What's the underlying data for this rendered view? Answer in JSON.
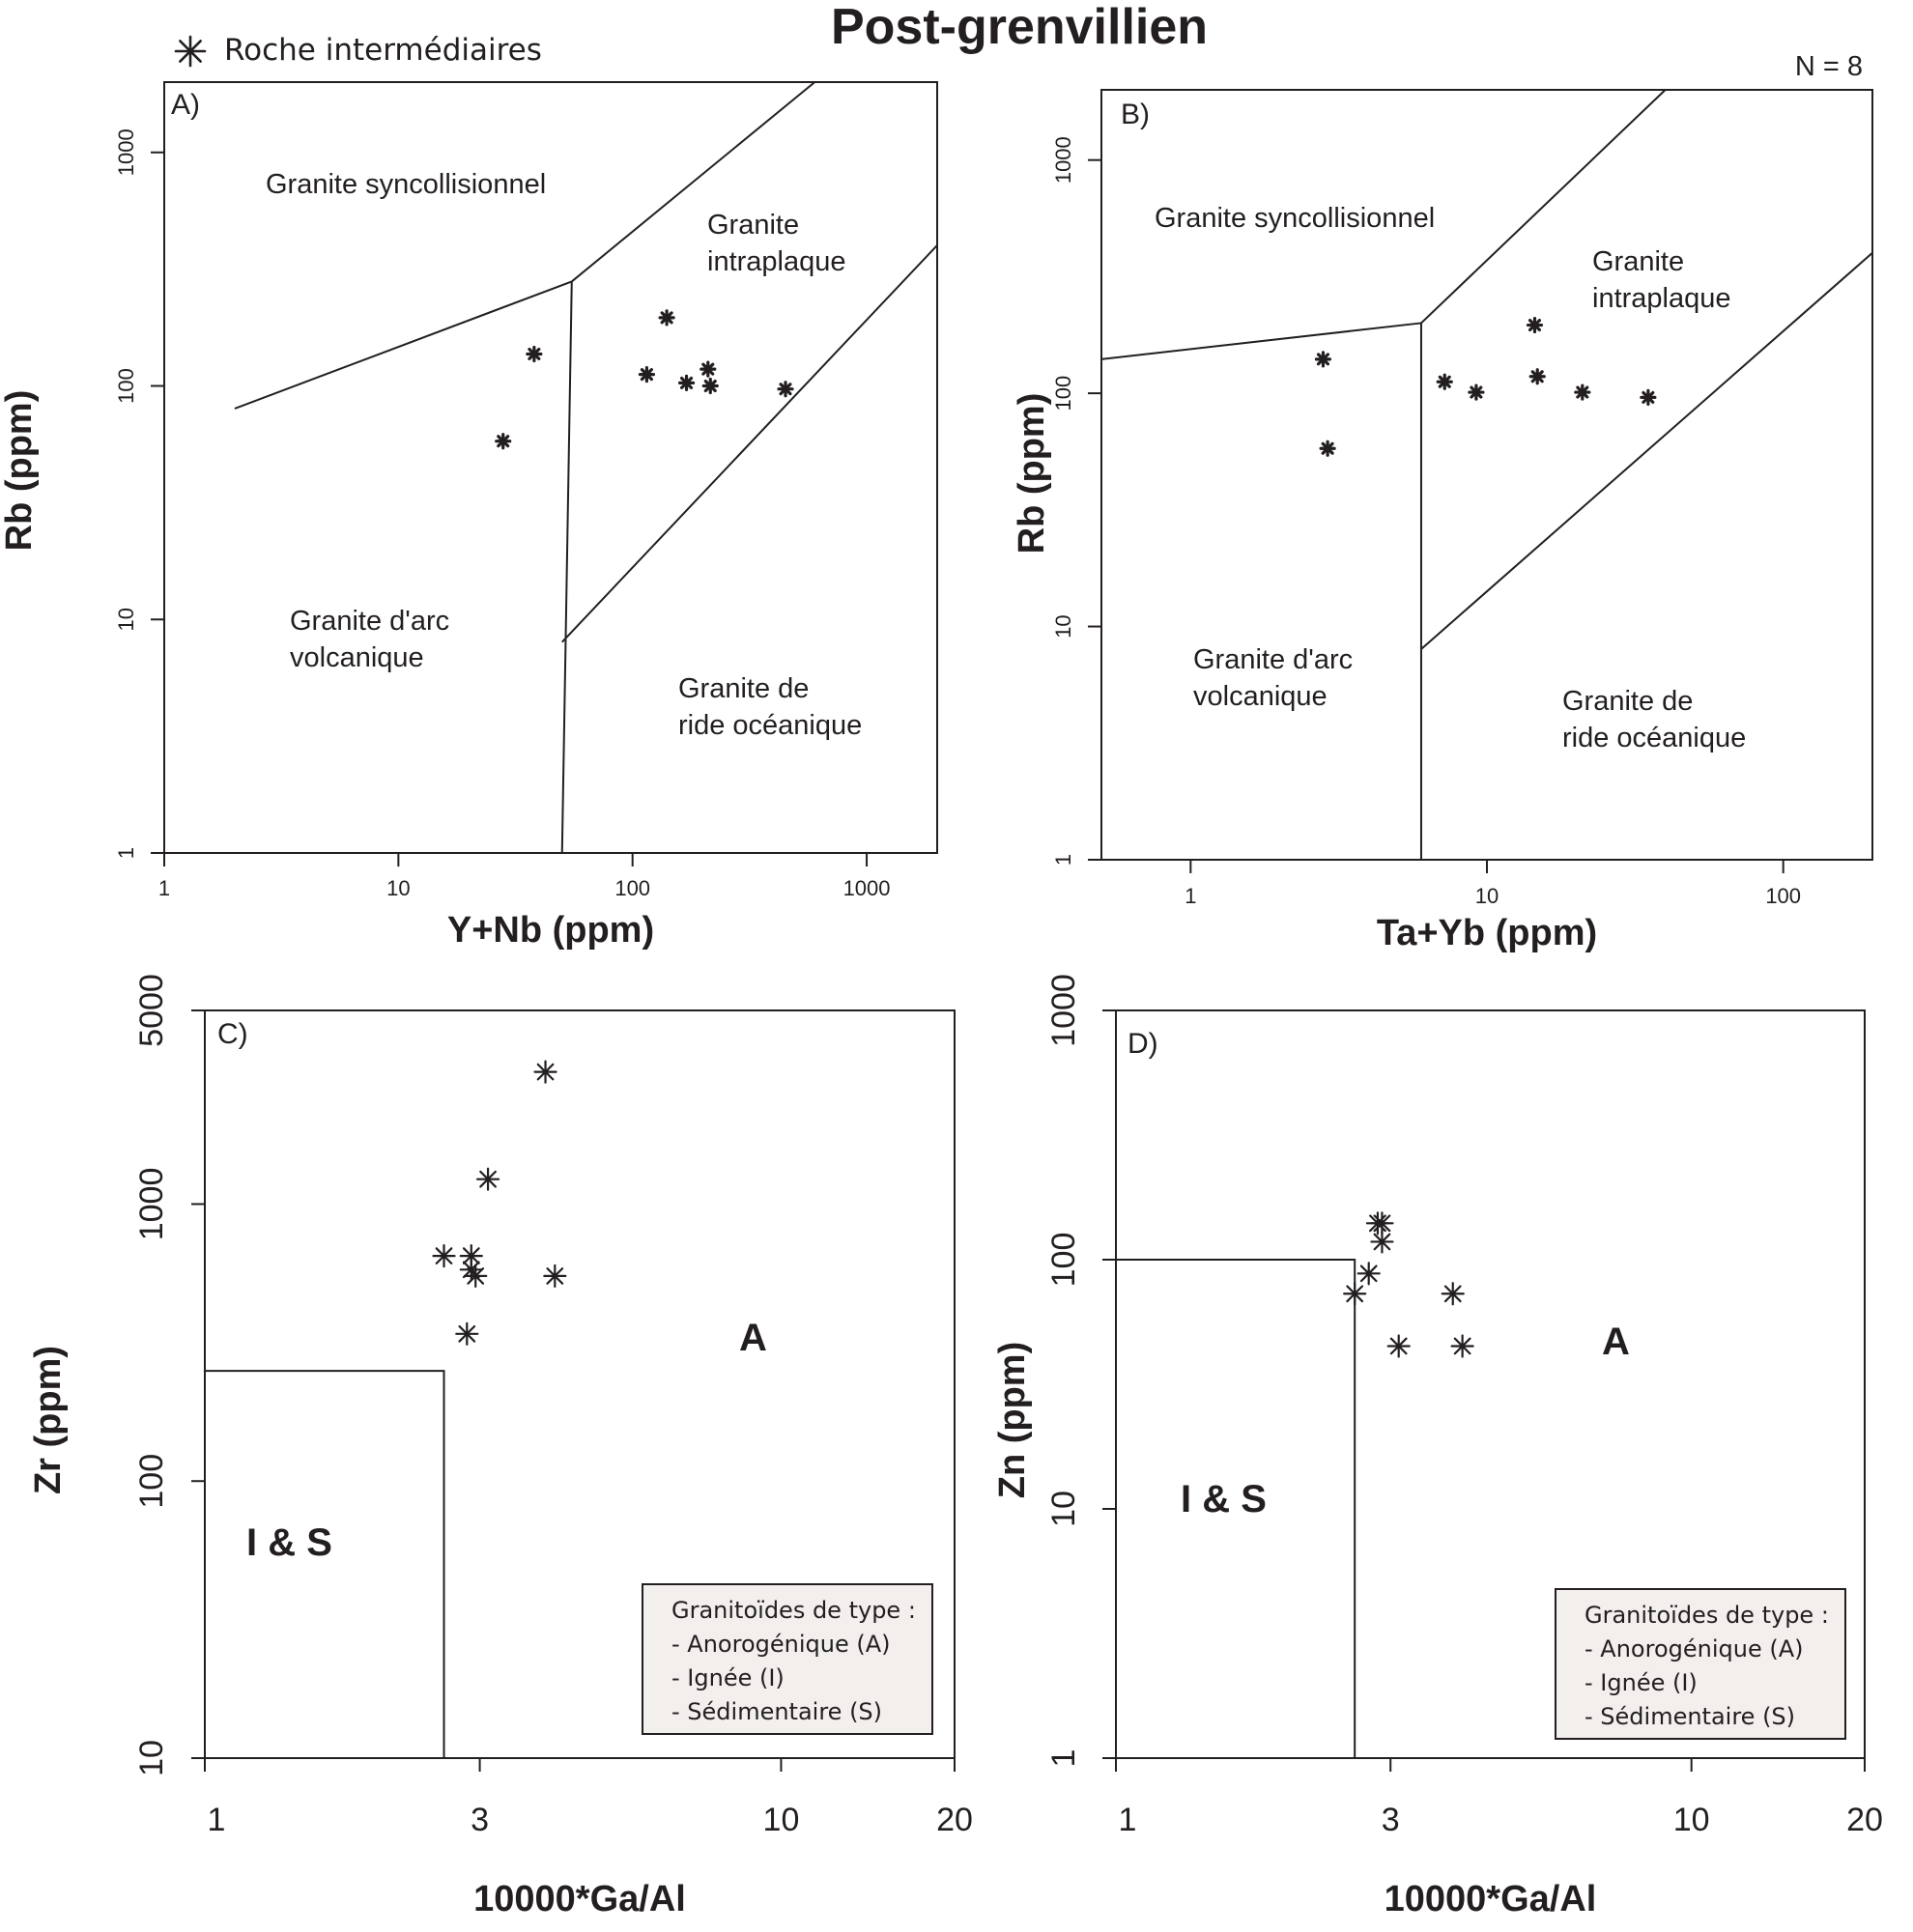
{
  "title": "Post-grenvillien",
  "legend": {
    "symbol": "asterisk-icon",
    "label": "Roche intermédiaires"
  },
  "n_label": "N = 8",
  "chart_data": [
    {
      "type": "scatter",
      "panel": "A)",
      "xlabel": "Y+Nb (ppm)",
      "ylabel": "Rb (ppm)",
      "xscale": "log",
      "yscale": "log",
      "xlim": [
        1,
        2000
      ],
      "ylim": [
        1,
        2000
      ],
      "xticks": [
        1,
        10,
        100,
        1000
      ],
      "xticklabels": [
        "1",
        "10",
        "100",
        "1000"
      ],
      "yticks": [
        1,
        10,
        100,
        1000
      ],
      "yticklabels": [
        "1",
        "10",
        "100",
        "1000"
      ],
      "regions": [
        {
          "label": [
            "Granite syncollisionnel"
          ]
        },
        {
          "label": [
            "Granite",
            "intraplaque"
          ]
        },
        {
          "label": [
            "Granite d'arc",
            "volcanique"
          ]
        },
        {
          "label": [
            "Granite de",
            "ride océanique"
          ]
        }
      ],
      "boundaries": [
        [
          [
            2,
            80
          ],
          [
            55,
            280
          ]
        ],
        [
          [
            55,
            280
          ],
          [
            50,
            1
          ]
        ],
        [
          [
            55,
            280
          ],
          [
            600,
            2000
          ]
        ],
        [
          [
            50,
            8
          ],
          [
            2000,
            400
          ]
        ]
      ],
      "series": [
        {
          "x": [
            28,
            38,
            115,
            140,
            170,
            210,
            215,
            450
          ],
          "y": [
            58,
            137,
            112,
            196,
            103,
            118,
            100,
            97
          ]
        }
      ]
    },
    {
      "type": "scatter",
      "panel": "B)",
      "xlabel": "Ta+Yb (ppm)",
      "ylabel": "Rb (ppm)",
      "xscale": "log",
      "yscale": "log",
      "xlim": [
        0.5,
        200
      ],
      "ylim": [
        1,
        2000
      ],
      "xticks": [
        1,
        10,
        100
      ],
      "xticklabels": [
        "1",
        "10",
        "100"
      ],
      "yticks": [
        1,
        10,
        100,
        1000
      ],
      "yticklabels": [
        "1",
        "10",
        "100",
        "1000"
      ],
      "regions": [
        {
          "label": [
            "Granite syncollisionnel"
          ]
        },
        {
          "label": [
            "Granite",
            "intraplaque"
          ]
        },
        {
          "label": [
            "Granite d'arc",
            "volcanique"
          ]
        },
        {
          "label": [
            "Granite de",
            "ride océanique"
          ]
        }
      ],
      "boundaries": [
        [
          [
            0.5,
            140
          ],
          [
            6,
            200
          ]
        ],
        [
          [
            6,
            200
          ],
          [
            6,
            1
          ]
        ],
        [
          [
            6,
            200
          ],
          [
            40,
            2000
          ]
        ],
        [
          [
            6,
            8
          ],
          [
            200,
            400
          ]
        ]
      ],
      "series": [
        {
          "x": [
            2.8,
            2.9,
            7.2,
            9.2,
            14.5,
            14.8,
            21,
            35
          ],
          "y": [
            140,
            58,
            112,
            101,
            196,
            118,
            101,
            96
          ]
        }
      ]
    },
    {
      "type": "scatter",
      "panel": "C)",
      "xlabel": "10000*Ga/Al",
      "ylabel": "Zr (ppm)",
      "xscale": "log",
      "yscale": "log",
      "xlim": [
        1,
        20
      ],
      "ylim": [
        10,
        5000
      ],
      "xticks": [
        1,
        3,
        10,
        20
      ],
      "xticklabels": [
        "1",
        "3",
        "10",
        "20"
      ],
      "yticks": [
        10,
        100,
        1000,
        5000
      ],
      "yticklabels": [
        "10",
        "100",
        "1000",
        "5000"
      ],
      "regions": [
        {
          "label": [
            "I & S"
          ]
        },
        {
          "label": [
            "A"
          ]
        }
      ],
      "boundaries": [
        [
          [
            1,
            250
          ],
          [
            2.6,
            250
          ],
          [
            2.6,
            10
          ]
        ]
      ],
      "box": {
        "title": "Granitoïdes de type :",
        "items": [
          "- Anorogénique (A)",
          "- Ignée (I)",
          "- Sédimentaire (S)"
        ]
      },
      "series": [
        {
          "x": [
            2.6,
            2.85,
            2.9,
            2.9,
            2.95,
            3.1,
            3.9,
            4.05
          ],
          "y": [
            650,
            340,
            580,
            650,
            550,
            1230,
            3000,
            550
          ]
        }
      ]
    },
    {
      "type": "scatter",
      "panel": "D)",
      "xlabel": "10000*Ga/Al",
      "ylabel": "Zn (ppm)",
      "xscale": "log",
      "yscale": "log",
      "xlim": [
        1,
        20
      ],
      "ylim": [
        1,
        1000
      ],
      "xticks": [
        1,
        3,
        10,
        20
      ],
      "xticklabels": [
        "1",
        "3",
        "10",
        "20"
      ],
      "yticks": [
        1,
        10,
        100,
        1000
      ],
      "yticklabels": [
        "1",
        "10",
        "100",
        "1000"
      ],
      "regions": [
        {
          "label": [
            "I & S"
          ]
        },
        {
          "label": [
            "A"
          ]
        }
      ],
      "boundaries": [
        [
          [
            1,
            100
          ],
          [
            2.6,
            100
          ],
          [
            2.6,
            1
          ]
        ]
      ],
      "box": {
        "title": "Granitoïdes de type :",
        "items": [
          "- Anorogénique (A)",
          "- Ignée (I)",
          "- Sédimentaire (S)"
        ]
      },
      "series": [
        {
          "x": [
            2.6,
            2.75,
            2.85,
            2.9,
            2.9,
            3.1,
            3.85,
            4.0
          ],
          "y": [
            73,
            88,
            140,
            140,
            118,
            45,
            73,
            45
          ]
        }
      ]
    }
  ]
}
